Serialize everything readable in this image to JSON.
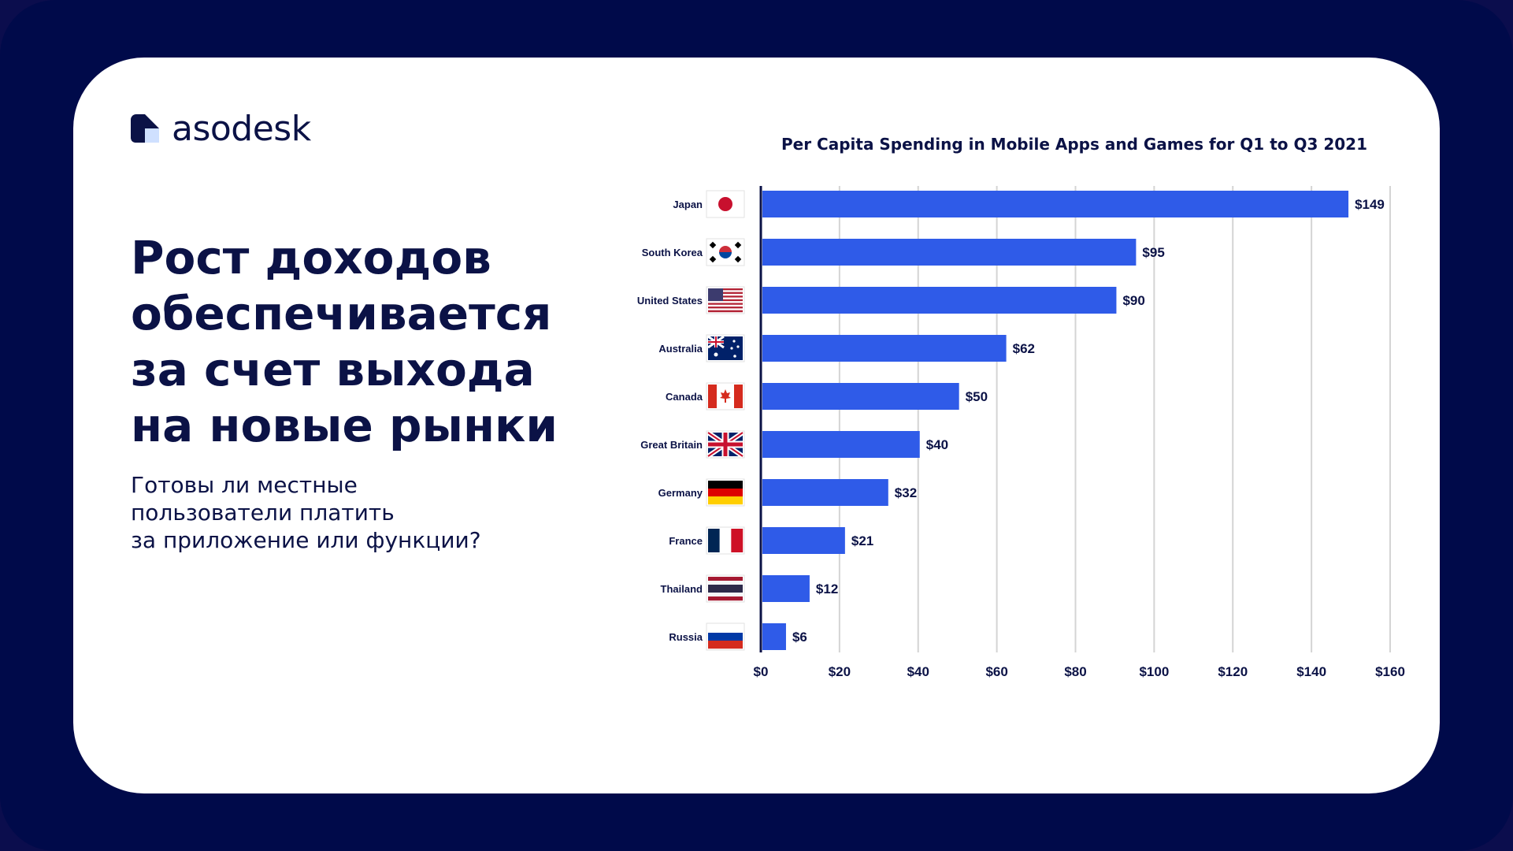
{
  "brand": {
    "name": "asodesk",
    "icon": "asodesk-logo-icon"
  },
  "headline": "Рост доходов\nобеспечивается\nза счет выхода\nна новые рынки",
  "subline": "Готовы ли местные\nпользователи платить\nза приложение или функции?",
  "colors": {
    "frame": "#000a4a",
    "card": "#ffffff",
    "text": "#0b1246",
    "bar": "#2f5be8",
    "grid": "#d4d4d4"
  },
  "chart_data": {
    "type": "bar",
    "orientation": "horizontal",
    "title": "Per Capita Spending in Mobile Apps and Games for Q1 to Q3 2021",
    "categories": [
      "Japan",
      "South Korea",
      "United States",
      "Australia",
      "Canada",
      "Great Britain",
      "Germany",
      "France",
      "Thailand",
      "Russia"
    ],
    "values": [
      149,
      95,
      90,
      62,
      50,
      40,
      32,
      21,
      12,
      6
    ],
    "value_labels": [
      "$149",
      "$95",
      "$90",
      "$62",
      "$50",
      "$40",
      "$32",
      "$21",
      "$12",
      "$6"
    ],
    "flags": [
      "japan-flag-icon",
      "south-korea-flag-icon",
      "united-states-flag-icon",
      "australia-flag-icon",
      "canada-flag-icon",
      "great-britain-flag-icon",
      "germany-flag-icon",
      "france-flag-icon",
      "thailand-flag-icon",
      "russia-flag-icon"
    ],
    "xlim": [
      0,
      160
    ],
    "xticks": [
      0,
      20,
      40,
      60,
      80,
      100,
      120,
      140,
      160
    ],
    "xtick_labels": [
      "$0",
      "$20",
      "$40",
      "$60",
      "$80",
      "$100",
      "$120",
      "$140",
      "$160"
    ],
    "grid": true,
    "legend": "none"
  }
}
